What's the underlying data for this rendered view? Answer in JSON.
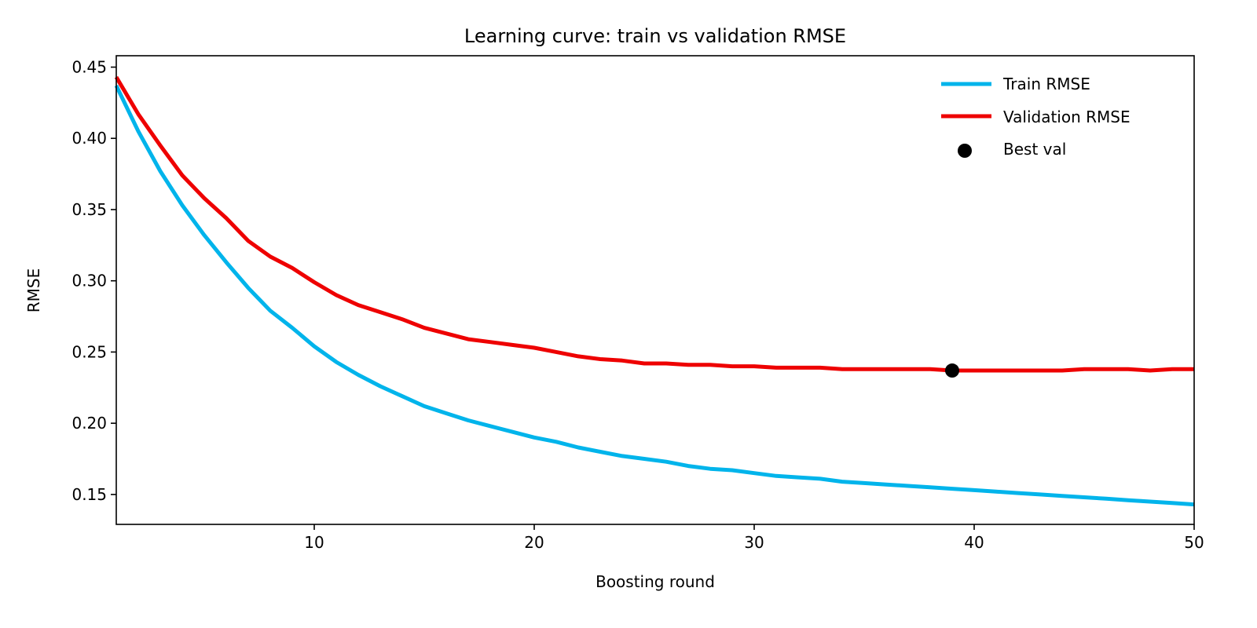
{
  "chart_data": {
    "type": "line",
    "title": "Learning curve: train vs validation RMSE",
    "xlabel": "Boosting round",
    "ylabel": "RMSE",
    "xlim": [
      1,
      50
    ],
    "ylim": [
      0.129,
      0.458
    ],
    "xticks": [
      10,
      20,
      30,
      40,
      50
    ],
    "yticks": [
      0.15,
      0.2,
      0.25,
      0.3,
      0.35,
      0.4,
      0.45
    ],
    "ytick_labels": [
      "0.15",
      "0.20",
      "0.25",
      "0.30",
      "0.35",
      "0.40",
      "0.45"
    ],
    "grid": false,
    "legend_position": "top-right",
    "x": [
      1,
      2,
      3,
      4,
      5,
      6,
      7,
      8,
      9,
      10,
      11,
      12,
      13,
      14,
      15,
      16,
      17,
      18,
      19,
      20,
      21,
      22,
      23,
      24,
      25,
      26,
      27,
      28,
      29,
      30,
      31,
      32,
      33,
      34,
      35,
      36,
      37,
      38,
      39,
      40,
      41,
      42,
      43,
      44,
      45,
      46,
      47,
      48,
      49,
      50
    ],
    "series": [
      {
        "name": "Train RMSE",
        "color": "#00b4eb",
        "values": [
          0.437,
          0.405,
          0.377,
          0.353,
          0.332,
          0.313,
          0.295,
          0.279,
          0.267,
          0.254,
          0.243,
          0.234,
          0.226,
          0.219,
          0.212,
          0.207,
          0.202,
          0.198,
          0.194,
          0.19,
          0.187,
          0.183,
          0.18,
          0.177,
          0.175,
          0.173,
          0.17,
          0.168,
          0.167,
          0.165,
          0.163,
          0.162,
          0.161,
          0.159,
          0.158,
          0.157,
          0.156,
          0.155,
          0.154,
          0.153,
          0.152,
          0.151,
          0.15,
          0.149,
          0.148,
          0.147,
          0.146,
          0.145,
          0.144,
          0.143
        ]
      },
      {
        "name": "Validation RMSE",
        "color": "#ee0000",
        "values": [
          0.443,
          0.417,
          0.395,
          0.374,
          0.358,
          0.344,
          0.328,
          0.317,
          0.309,
          0.299,
          0.29,
          0.283,
          0.278,
          0.273,
          0.267,
          0.263,
          0.259,
          0.257,
          0.255,
          0.253,
          0.25,
          0.247,
          0.245,
          0.244,
          0.242,
          0.242,
          0.241,
          0.241,
          0.24,
          0.24,
          0.239,
          0.239,
          0.239,
          0.238,
          0.238,
          0.238,
          0.238,
          0.238,
          0.237,
          0.237,
          0.237,
          0.237,
          0.237,
          0.237,
          0.238,
          0.238,
          0.238,
          0.237,
          0.238,
          0.238
        ]
      }
    ],
    "markers": [
      {
        "name": "Best val",
        "color": "#000000",
        "x": 39,
        "y": 0.237
      }
    ]
  }
}
